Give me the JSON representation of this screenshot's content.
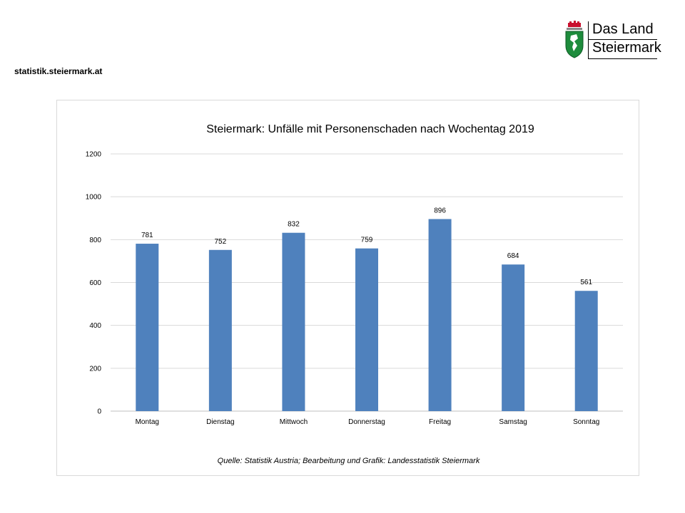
{
  "header": {
    "site_url": "statistik.steiermark.at",
    "logo_line1": "Das Land",
    "logo_line2": "Steiermark"
  },
  "colors": {
    "bar": "#4f81bd",
    "grid": "#d9d9d9",
    "logo_green": "#1e8c3c"
  },
  "chart_data": {
    "type": "bar",
    "title": "Steiermark: Unfälle mit Personenschaden nach Wochentag 2019",
    "xlabel": "",
    "ylabel": "",
    "categories": [
      "Montag",
      "Dienstag",
      "Mittwoch",
      "Donnerstag",
      "Freitag",
      "Samstag",
      "Sonntag"
    ],
    "values": [
      781,
      752,
      832,
      759,
      896,
      684,
      561
    ],
    "ylim": [
      0,
      1200
    ],
    "yticks": [
      0,
      200,
      400,
      600,
      800,
      1000,
      1200
    ],
    "grid": true,
    "data_labels": true,
    "legend": "none"
  },
  "source_note": "Quelle: Statistik Austria; Bearbeitung und Grafik: Landesstatistik Steiermark"
}
